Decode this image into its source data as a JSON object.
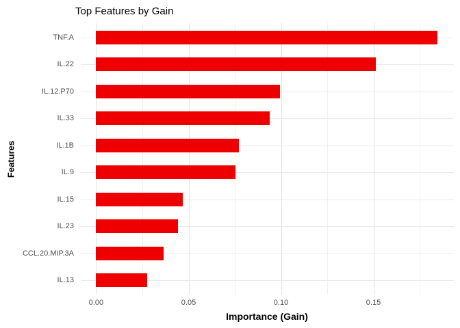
{
  "chart_data": {
    "type": "bar",
    "orientation": "horizontal",
    "title": "Top Features by Gain",
    "xlabel": "Importance (Gain)",
    "ylabel": "Features",
    "categories": [
      "TNF.A",
      "IL.22",
      "IL.12.P70",
      "IL.33",
      "IL.1B",
      "IL.9",
      "IL.15",
      "IL.23",
      "CCL.20.MIP.3A",
      "IL.13"
    ],
    "values": [
      0.1846,
      0.1513,
      0.0993,
      0.0939,
      0.0772,
      0.0753,
      0.047,
      0.0443,
      0.0365,
      0.0276
    ],
    "x_major_ticks": {
      "labels": [
        "0.00",
        "0.05",
        "0.10",
        "0.15"
      ],
      "values": [
        0,
        0.05,
        0.1,
        0.15
      ]
    },
    "x_minor_tick_values": [
      0.025,
      0.075,
      0.125,
      0.175
    ],
    "xlim": [
      -0.0083,
      0.1935
    ],
    "grid": "major-and-minor",
    "legend_position": "none",
    "colors": {
      "bar": "#ee0000",
      "grid_major": "#e2e2e2",
      "grid_minor": "#f0f0f0",
      "grid_horizontal": "#eaeaea",
      "tick_label": "#4d4d4d",
      "axis_title": "#000000",
      "title": "#000000",
      "background": "#ffffff"
    }
  }
}
